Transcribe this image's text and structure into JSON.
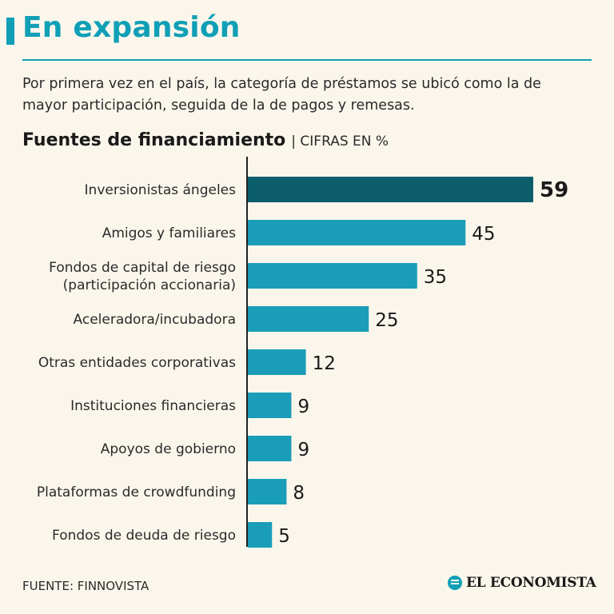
{
  "header": {
    "title": "En expansión",
    "subtitle": "Por primera vez en el país, la categoría de préstamos se ubicó como la de mayor participación, seguida de la de pagos y remesas.",
    "section_title": "Fuentes de financiamiento",
    "section_unit": "| CIFRAS EN %"
  },
  "chart_data": {
    "type": "bar",
    "orientation": "horizontal",
    "title": "Fuentes de financiamiento",
    "unit": "CIFRAS EN %",
    "categories": [
      [
        "Inversionistas ángeles"
      ],
      [
        "Amigos y familiares"
      ],
      [
        "Fondos de capital de riesgo",
        "(participación accionaria)"
      ],
      [
        "Aceleradora/incubadora"
      ],
      [
        "Otras entidades corporativas"
      ],
      [
        "Instituciones financieras"
      ],
      [
        "Apoyos de gobierno"
      ],
      [
        "Plataformas de crowdfunding"
      ],
      [
        "Fondos de deuda de riesgo"
      ]
    ],
    "values": [
      59,
      45,
      35,
      25,
      12,
      9,
      9,
      8,
      5
    ],
    "highlight_index": 0,
    "colors": {
      "bar": "#1a9db8",
      "highlight": "#0c5e6b",
      "axis": "#222222"
    }
  },
  "footer": {
    "source": "FUENTE: FINNOVISTA",
    "logo_text": "EL ECONOMISTA"
  }
}
